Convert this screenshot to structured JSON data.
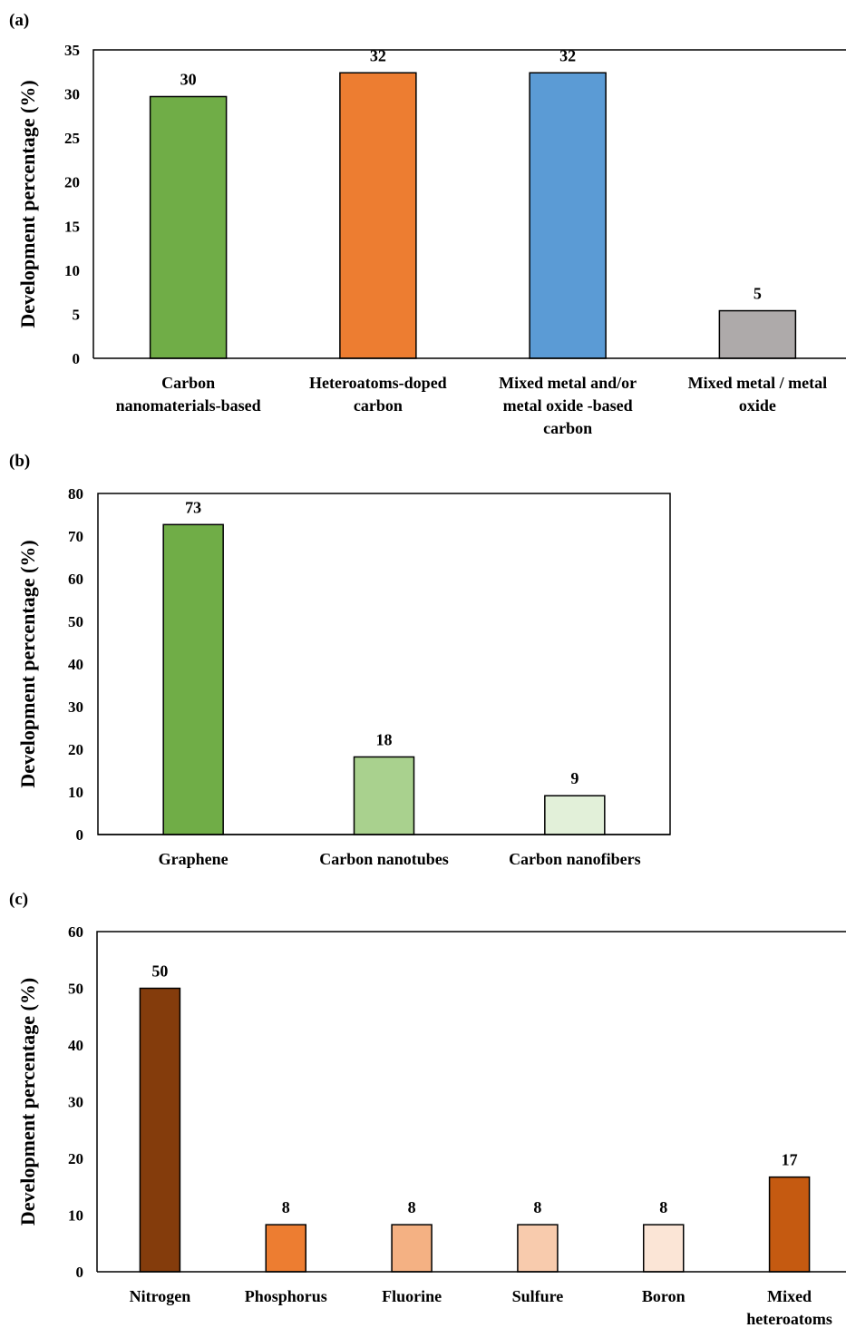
{
  "chart_data": [
    {
      "type": "bar",
      "panel_label": "(a)",
      "ylabel": "Development percentage (%)",
      "xlabel": "",
      "ylim": [
        0,
        35
      ],
      "yticks": [
        0,
        5,
        10,
        15,
        20,
        25,
        30,
        35
      ],
      "categories": [
        [
          "Carbon",
          "nanomaterials-based"
        ],
        [
          "Heteroatoms-doped",
          "carbon"
        ],
        [
          "Mixed metal and/or",
          "metal oxide -based",
          "carbon"
        ],
        [
          "Mixed metal / metal",
          "oxide"
        ]
      ],
      "values": [
        29.7,
        32.4,
        32.4,
        5.4
      ],
      "data_labels": [
        "30",
        "32",
        "32",
        "5"
      ],
      "colors": [
        "#70ad47",
        "#ed7d31",
        "#5b9bd5",
        "#aeaaaa"
      ],
      "frame": "open",
      "grid": false,
      "legend": "none"
    },
    {
      "type": "bar",
      "panel_label": "(b)",
      "ylabel": "Development percentage (%)",
      "xlabel": "",
      "ylim": [
        0,
        80
      ],
      "yticks": [
        0,
        10,
        20,
        30,
        40,
        50,
        60,
        70,
        80
      ],
      "categories": [
        [
          "Graphene"
        ],
        [
          "Carbon nanotubes"
        ],
        [
          "Carbon nanofibers"
        ]
      ],
      "values": [
        72.7,
        18.2,
        9.1
      ],
      "data_labels": [
        "73",
        "18",
        "9"
      ],
      "colors": [
        "#70ad47",
        "#a9d18e",
        "#e2f0d9"
      ],
      "frame": "box",
      "grid": false,
      "legend": "none"
    },
    {
      "type": "bar",
      "panel_label": "(c)",
      "ylabel": "Development percentage (%)",
      "xlabel": "",
      "ylim": [
        0,
        60
      ],
      "yticks": [
        0,
        10,
        20,
        30,
        40,
        50,
        60
      ],
      "categories": [
        [
          "Nitrogen"
        ],
        [
          "Phosphorus"
        ],
        [
          "Fluorine"
        ],
        [
          "Sulfure"
        ],
        [
          "Boron"
        ],
        [
          "Mixed",
          "heteroatoms"
        ]
      ],
      "values": [
        50,
        8.3,
        8.3,
        8.3,
        8.3,
        16.7
      ],
      "data_labels": [
        "50",
        "8",
        "8",
        "8",
        "8",
        "17"
      ],
      "colors": [
        "#843c0c",
        "#ed7d31",
        "#f4b183",
        "#f8cbad",
        "#fbe5d6",
        "#c55a11"
      ],
      "frame": "open",
      "grid": false,
      "legend": "none"
    }
  ]
}
